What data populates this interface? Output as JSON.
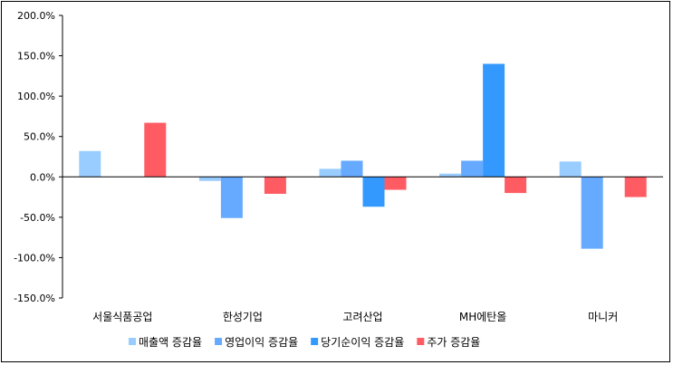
{
  "chart_data": {
    "type": "bar",
    "categories": [
      "서울식품공업",
      "한성기업",
      "고려산업",
      "MH에탄올",
      "마니커"
    ],
    "series": [
      {
        "name": "매출액 증감율",
        "color": "#99ccff",
        "values": [
          32,
          -5,
          10,
          4,
          19
        ]
      },
      {
        "name": "영업이익 증감율",
        "color": "#66aaff",
        "values": [
          0,
          -51,
          20,
          20,
          -89
        ]
      },
      {
        "name": "당기순이익 증감율",
        "color": "#3399ff",
        "values": [
          0,
          0,
          -37,
          140,
          0
        ]
      },
      {
        "name": "주가 증감율",
        "color": "#ff5b63",
        "values": [
          67,
          -21,
          -16,
          -20,
          -25
        ]
      }
    ],
    "yticks": [
      "200.0%",
      "150.0%",
      "100.0%",
      "50.0%",
      "0.0%",
      "-50.0%",
      "-100.0%",
      "-150.0%"
    ],
    "ylim": [
      -150,
      200
    ],
    "grid": false,
    "legend": "bottom"
  }
}
